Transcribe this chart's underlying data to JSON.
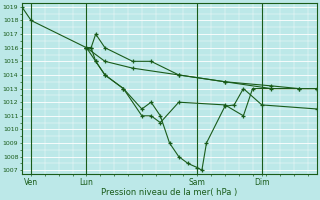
{
  "bg_color": "#bce8e8",
  "grid_color": "#ffffff",
  "line_color": "#1a5c1a",
  "ylabel_min": 1007,
  "ylabel_max": 1019,
  "yticks": [
    1007,
    1008,
    1009,
    1010,
    1011,
    1012,
    1013,
    1014,
    1015,
    1016,
    1017,
    1018,
    1019
  ],
  "xlabel": "Pression niveau de la mer( hPa )",
  "xtick_labels": [
    "Ven",
    "Lun",
    "Sam",
    "Dim"
  ],
  "xtick_positions": [
    1,
    7,
    19,
    26
  ],
  "vlines": [
    1,
    7,
    19,
    26
  ],
  "xmin": 0,
  "xmax": 32,
  "series": [
    {
      "x": [
        0,
        1,
        7,
        7.5,
        8,
        9,
        12,
        14,
        17,
        22,
        27,
        30,
        32
      ],
      "y": [
        1019,
        1018,
        1016,
        1016,
        1017,
        1016,
        1015,
        1015,
        1014,
        1013.5,
        1013,
        1013,
        1013
      ]
    },
    {
      "x": [
        7,
        7.5,
        8,
        9,
        11,
        13,
        14,
        15,
        17,
        22,
        24,
        25,
        32
      ],
      "y": [
        1016,
        1016,
        1015,
        1014,
        1013,
        1011,
        1011,
        1010.5,
        1012,
        1011.8,
        1011,
        1013,
        1013
      ]
    },
    {
      "x": [
        7,
        8,
        9,
        11,
        13,
        14,
        15,
        16,
        17,
        18,
        19,
        19.5,
        20,
        22,
        23,
        24,
        26,
        32
      ],
      "y": [
        1016,
        1015,
        1014,
        1013,
        1011.5,
        1012,
        1011,
        1009,
        1008,
        1007.5,
        1007.2,
        1007,
        1009,
        1011.7,
        1011.8,
        1013,
        1011.8,
        1011.5
      ]
    },
    {
      "x": [
        7,
        9,
        12,
        17,
        22,
        27,
        30,
        32
      ],
      "y": [
        1016,
        1015,
        1014.5,
        1014,
        1013.5,
        1013.2,
        1013,
        1013
      ]
    }
  ]
}
